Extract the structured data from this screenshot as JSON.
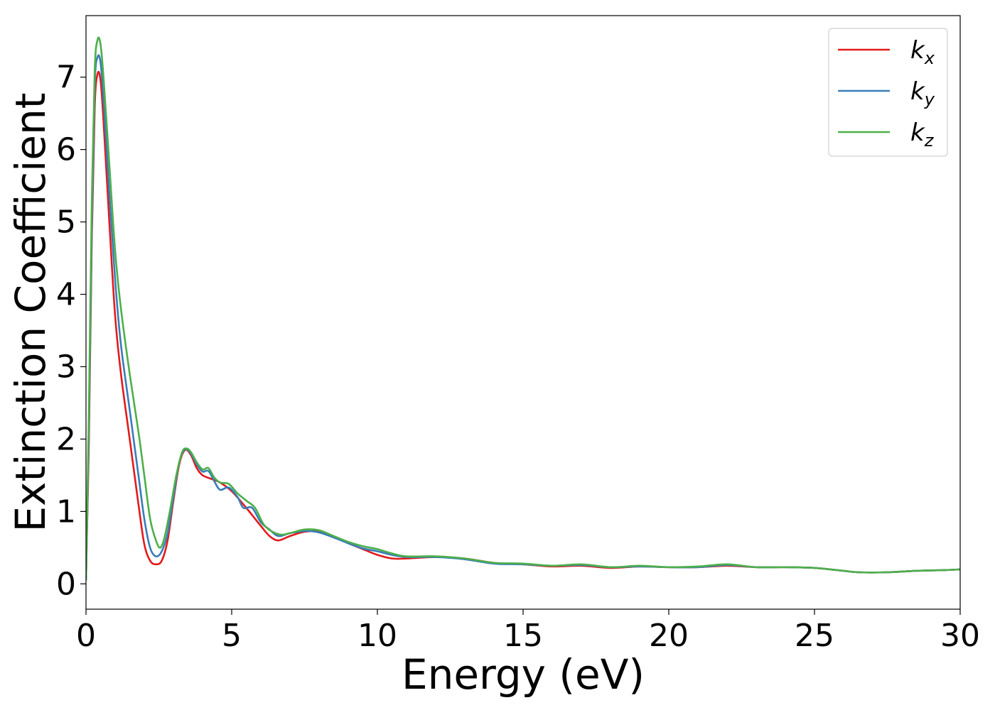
{
  "chart_data": {
    "type": "line",
    "xlabel": "Energy (eV)",
    "ylabel": "Extinction Coefficient",
    "xlim": [
      0,
      30
    ],
    "ylim": [
      -0.35,
      7.85
    ],
    "xticks": [
      0,
      5,
      10,
      15,
      20,
      25,
      30
    ],
    "yticks": [
      0,
      1,
      2,
      3,
      4,
      5,
      6,
      7
    ],
    "grid": false,
    "legend_position": "top-right",
    "series": [
      {
        "name": "k_x",
        "base": "k",
        "sub": "x",
        "color": "#e41a1c",
        "points": [
          [
            0,
            0.05
          ],
          [
            0.1,
            2.0
          ],
          [
            0.2,
            4.8
          ],
          [
            0.3,
            6.6
          ],
          [
            0.4,
            7.05
          ],
          [
            0.5,
            6.95
          ],
          [
            0.6,
            6.4
          ],
          [
            0.8,
            5.0
          ],
          [
            1.0,
            3.7
          ],
          [
            1.2,
            2.9
          ],
          [
            1.5,
            2.0
          ],
          [
            1.8,
            1.1
          ],
          [
            2.0,
            0.55
          ],
          [
            2.2,
            0.32
          ],
          [
            2.4,
            0.27
          ],
          [
            2.6,
            0.32
          ],
          [
            2.8,
            0.6
          ],
          [
            3.0,
            1.15
          ],
          [
            3.2,
            1.65
          ],
          [
            3.4,
            1.85
          ],
          [
            3.6,
            1.78
          ],
          [
            3.8,
            1.6
          ],
          [
            4.0,
            1.5
          ],
          [
            4.3,
            1.45
          ],
          [
            4.6,
            1.4
          ],
          [
            5.0,
            1.28
          ],
          [
            5.5,
            1.05
          ],
          [
            6.0,
            0.8
          ],
          [
            6.3,
            0.66
          ],
          [
            6.6,
            0.6
          ],
          [
            7.0,
            0.66
          ],
          [
            7.5,
            0.72
          ],
          [
            8.0,
            0.72
          ],
          [
            8.5,
            0.65
          ],
          [
            9.0,
            0.56
          ],
          [
            9.5,
            0.48
          ],
          [
            10.0,
            0.4
          ],
          [
            10.5,
            0.35
          ],
          [
            11.0,
            0.35
          ],
          [
            12.0,
            0.37
          ],
          [
            13.0,
            0.35
          ],
          [
            14.0,
            0.29
          ],
          [
            15.0,
            0.27
          ],
          [
            16.0,
            0.24
          ],
          [
            17.0,
            0.25
          ],
          [
            18.0,
            0.22
          ],
          [
            19.0,
            0.24
          ],
          [
            20.0,
            0.23
          ],
          [
            21.0,
            0.23
          ],
          [
            22.0,
            0.25
          ],
          [
            23.0,
            0.23
          ],
          [
            24.0,
            0.23
          ],
          [
            25.0,
            0.22
          ],
          [
            26.0,
            0.18
          ],
          [
            26.5,
            0.16
          ],
          [
            27.5,
            0.16
          ],
          [
            28.5,
            0.18
          ],
          [
            29.5,
            0.19
          ],
          [
            30,
            0.2
          ]
        ]
      },
      {
        "name": "k_y",
        "base": "k",
        "sub": "y",
        "color": "#377eb8",
        "points": [
          [
            0,
            0.05
          ],
          [
            0.1,
            2.2
          ],
          [
            0.2,
            5.0
          ],
          [
            0.3,
            6.9
          ],
          [
            0.4,
            7.28
          ],
          [
            0.5,
            7.2
          ],
          [
            0.6,
            6.7
          ],
          [
            0.8,
            5.4
          ],
          [
            1.0,
            4.2
          ],
          [
            1.2,
            3.3
          ],
          [
            1.5,
            2.4
          ],
          [
            1.8,
            1.5
          ],
          [
            2.0,
            0.9
          ],
          [
            2.2,
            0.5
          ],
          [
            2.4,
            0.38
          ],
          [
            2.6,
            0.45
          ],
          [
            2.8,
            0.7
          ],
          [
            3.0,
            1.2
          ],
          [
            3.2,
            1.68
          ],
          [
            3.4,
            1.86
          ],
          [
            3.6,
            1.8
          ],
          [
            3.8,
            1.65
          ],
          [
            4.0,
            1.55
          ],
          [
            4.2,
            1.56
          ],
          [
            4.4,
            1.42
          ],
          [
            4.6,
            1.3
          ],
          [
            4.9,
            1.33
          ],
          [
            5.2,
            1.2
          ],
          [
            5.4,
            1.05
          ],
          [
            5.7,
            1.05
          ],
          [
            6.0,
            0.85
          ],
          [
            6.3,
            0.75
          ],
          [
            6.6,
            0.66
          ],
          [
            7.0,
            0.7
          ],
          [
            7.5,
            0.73
          ],
          [
            8.0,
            0.71
          ],
          [
            8.5,
            0.64
          ],
          [
            9.0,
            0.56
          ],
          [
            9.5,
            0.49
          ],
          [
            10.0,
            0.45
          ],
          [
            10.5,
            0.4
          ],
          [
            11.0,
            0.37
          ],
          [
            12.0,
            0.37
          ],
          [
            13.0,
            0.34
          ],
          [
            14.0,
            0.28
          ],
          [
            15.0,
            0.27
          ],
          [
            16.0,
            0.25
          ],
          [
            17.0,
            0.26
          ],
          [
            18.0,
            0.23
          ],
          [
            19.0,
            0.24
          ],
          [
            20.0,
            0.23
          ],
          [
            21.0,
            0.23
          ],
          [
            22.0,
            0.26
          ],
          [
            23.0,
            0.23
          ],
          [
            24.0,
            0.23
          ],
          [
            25.0,
            0.22
          ],
          [
            26.0,
            0.18
          ],
          [
            26.5,
            0.16
          ],
          [
            27.5,
            0.16
          ],
          [
            28.5,
            0.18
          ],
          [
            29.5,
            0.19
          ],
          [
            30,
            0.2
          ]
        ]
      },
      {
        "name": "k_z",
        "base": "k",
        "sub": "z",
        "color": "#4daf4a",
        "points": [
          [
            0,
            0.05
          ],
          [
            0.1,
            2.4
          ],
          [
            0.2,
            5.3
          ],
          [
            0.3,
            7.1
          ],
          [
            0.4,
            7.52
          ],
          [
            0.5,
            7.45
          ],
          [
            0.6,
            7.0
          ],
          [
            0.8,
            5.8
          ],
          [
            1.0,
            4.6
          ],
          [
            1.2,
            3.8
          ],
          [
            1.5,
            2.9
          ],
          [
            1.8,
            2.1
          ],
          [
            2.0,
            1.5
          ],
          [
            2.2,
            0.9
          ],
          [
            2.4,
            0.6
          ],
          [
            2.55,
            0.5
          ],
          [
            2.7,
            0.65
          ],
          [
            2.9,
            1.05
          ],
          [
            3.1,
            1.5
          ],
          [
            3.3,
            1.82
          ],
          [
            3.45,
            1.87
          ],
          [
            3.6,
            1.82
          ],
          [
            3.8,
            1.68
          ],
          [
            4.0,
            1.58
          ],
          [
            4.2,
            1.6
          ],
          [
            4.4,
            1.47
          ],
          [
            4.6,
            1.4
          ],
          [
            4.9,
            1.38
          ],
          [
            5.2,
            1.25
          ],
          [
            5.5,
            1.15
          ],
          [
            5.8,
            1.05
          ],
          [
            6.1,
            0.82
          ],
          [
            6.4,
            0.72
          ],
          [
            6.7,
            0.68
          ],
          [
            7.0,
            0.7
          ],
          [
            7.5,
            0.75
          ],
          [
            8.0,
            0.74
          ],
          [
            8.5,
            0.66
          ],
          [
            9.0,
            0.58
          ],
          [
            9.5,
            0.52
          ],
          [
            10.0,
            0.48
          ],
          [
            10.5,
            0.42
          ],
          [
            11.0,
            0.38
          ],
          [
            12.0,
            0.38
          ],
          [
            13.0,
            0.35
          ],
          [
            14.0,
            0.29
          ],
          [
            15.0,
            0.28
          ],
          [
            16.0,
            0.25
          ],
          [
            17.0,
            0.27
          ],
          [
            18.0,
            0.23
          ],
          [
            19.0,
            0.25
          ],
          [
            20.0,
            0.23
          ],
          [
            21.0,
            0.24
          ],
          [
            22.0,
            0.27
          ],
          [
            23.0,
            0.23
          ],
          [
            24.0,
            0.23
          ],
          [
            25.0,
            0.22
          ],
          [
            26.0,
            0.18
          ],
          [
            26.5,
            0.16
          ],
          [
            27.5,
            0.16
          ],
          [
            28.5,
            0.18
          ],
          [
            29.5,
            0.19
          ],
          [
            30,
            0.2
          ]
        ]
      }
    ]
  }
}
